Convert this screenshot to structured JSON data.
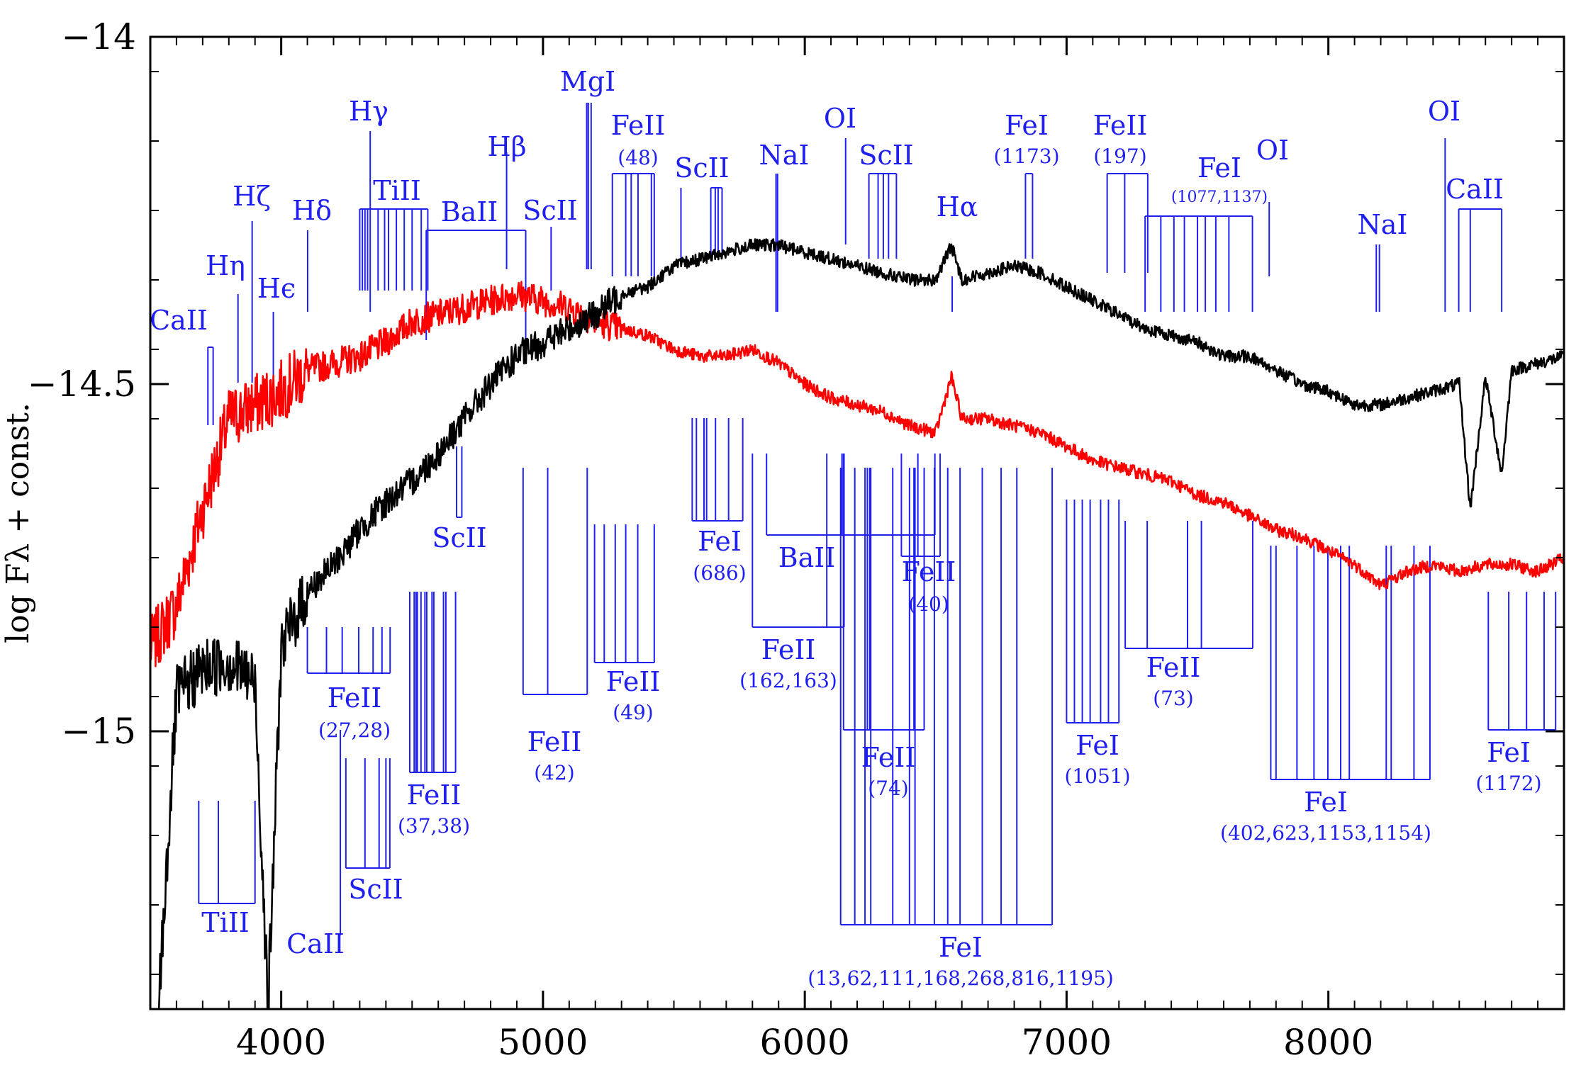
{
  "chart_data": {
    "type": "line",
    "title": "",
    "xlabel": "",
    "ylabel": "log Fλ + const.",
    "xlim": [
      3500,
      8900
    ],
    "ylim": [
      -15.4,
      -14.0
    ],
    "x_ticks": [
      4000,
      5000,
      6000,
      7000,
      8000
    ],
    "y_ticks": [
      -14,
      -14.5,
      -15
    ],
    "x_tick_labels": [
      "4000",
      "5000",
      "6000",
      "7000",
      "8000"
    ],
    "y_tick_labels": [
      "−14",
      "−14.5",
      "−15"
    ],
    "grid": false,
    "legend": "none",
    "colors": {
      "series1": "#ff0000",
      "series2": "#000000",
      "annotations": "#1f1ff0",
      "axes": "#000000"
    },
    "series": [
      {
        "color": "#ff0000",
        "x": [
          3500,
          3600,
          3700,
          3800,
          3900,
          4000,
          4100,
          4200,
          4300,
          4400,
          4500,
          4600,
          4700,
          4800,
          4900,
          5000,
          5100,
          5200,
          5300,
          5400,
          5500,
          5600,
          5700,
          5800,
          5900,
          6000,
          6100,
          6200,
          6300,
          6400,
          6500,
          6560,
          6600,
          6700,
          6800,
          6900,
          7000,
          7100,
          7200,
          7300,
          7400,
          7500,
          7600,
          7700,
          7800,
          7900,
          8000,
          8100,
          8200,
          8300,
          8400,
          8500,
          8600,
          8700,
          8800,
          8900
        ],
        "values": [
          -14.88,
          -14.82,
          -14.68,
          -14.55,
          -14.53,
          -14.51,
          -14.48,
          -14.47,
          -14.46,
          -14.44,
          -14.41,
          -14.4,
          -14.39,
          -14.38,
          -14.37,
          -14.38,
          -14.39,
          -14.41,
          -14.42,
          -14.43,
          -14.45,
          -14.46,
          -14.46,
          -14.45,
          -14.47,
          -14.5,
          -14.52,
          -14.53,
          -14.54,
          -14.56,
          -14.57,
          -14.49,
          -14.55,
          -14.55,
          -14.56,
          -14.57,
          -14.59,
          -14.61,
          -14.62,
          -14.63,
          -14.64,
          -14.66,
          -14.67,
          -14.69,
          -14.71,
          -14.72,
          -14.74,
          -14.76,
          -14.79,
          -14.77,
          -14.76,
          -14.77,
          -14.76,
          -14.76,
          -14.77,
          -14.75
        ]
      },
      {
        "color": "#000000",
        "x": [
          3500,
          3600,
          3700,
          3800,
          3900,
          3950,
          4000,
          4100,
          4200,
          4300,
          4400,
          4500,
          4600,
          4700,
          4800,
          4900,
          5000,
          5100,
          5200,
          5300,
          5400,
          5500,
          5600,
          5700,
          5800,
          5900,
          6000,
          6100,
          6200,
          6300,
          6400,
          6500,
          6560,
          6600,
          6700,
          6800,
          6900,
          7000,
          7100,
          7200,
          7300,
          7400,
          7500,
          7600,
          7700,
          7800,
          7900,
          8000,
          8100,
          8200,
          8300,
          8400,
          8500,
          8542,
          8600,
          8662,
          8700,
          8800,
          8900
        ],
        "values": [
          -15.6,
          -14.95,
          -14.91,
          -14.9,
          -14.93,
          -15.4,
          -14.88,
          -14.8,
          -14.76,
          -14.71,
          -14.67,
          -14.64,
          -14.6,
          -14.55,
          -14.5,
          -14.46,
          -14.44,
          -14.42,
          -14.4,
          -14.37,
          -14.36,
          -14.33,
          -14.32,
          -14.31,
          -14.3,
          -14.3,
          -14.31,
          -14.32,
          -14.33,
          -14.34,
          -14.35,
          -14.35,
          -14.3,
          -14.35,
          -14.34,
          -14.33,
          -14.34,
          -14.36,
          -14.38,
          -14.4,
          -14.42,
          -14.43,
          -14.44,
          -14.46,
          -14.46,
          -14.48,
          -14.5,
          -14.51,
          -14.53,
          -14.53,
          -14.52,
          -14.51,
          -14.5,
          -14.68,
          -14.49,
          -14.63,
          -14.48,
          -14.47,
          -14.46
        ]
      }
    ],
    "annotations": [
      {
        "label": "CaII",
        "sub": "",
        "lines": [
          3720,
          3740
        ]
      },
      {
        "label": "Hη",
        "sub": "",
        "lines": [
          3835
        ]
      },
      {
        "label": "Hζ",
        "sub": "",
        "lines": [
          3889
        ]
      },
      {
        "label": "Hϵ",
        "sub": "",
        "lines": [
          3970
        ]
      },
      {
        "label": "Hδ",
        "sub": "",
        "lines": [
          4101
        ]
      },
      {
        "label": "Hγ",
        "sub": "",
        "lines": [
          4340
        ]
      },
      {
        "label": "TiII",
        "sub": "",
        "lines": [
          4300,
          4310,
          4320,
          4330,
          4370,
          4395,
          4410,
          4440,
          4470,
          4500,
          4535,
          4560
        ]
      },
      {
        "label": "BaII",
        "sub": "",
        "lines": [
          4554,
          4934
        ]
      },
      {
        "label": "Hβ",
        "sub": "",
        "lines": [
          4861
        ]
      },
      {
        "label": "ScII",
        "sub": "",
        "lines": [
          5031
        ]
      },
      {
        "label": "MgI",
        "sub": "",
        "lines": [
          5167,
          5173,
          5184
        ]
      },
      {
        "label": "FeII",
        "sub": "(48)",
        "lines": [
          5265,
          5316,
          5337,
          5363,
          5414,
          5425
        ]
      },
      {
        "label": "ScII",
        "sub": "",
        "lines": [
          5527
        ]
      },
      {
        "label": "ScII",
        "sub": "",
        "lines": [
          5641,
          5658,
          5669,
          5684
        ]
      },
      {
        "label": "NaI",
        "sub": "",
        "lines": [
          5890,
          5896
        ]
      },
      {
        "label": "OI",
        "sub": "",
        "lines": [
          6156
        ]
      },
      {
        "label": "ScII",
        "sub": "",
        "lines": [
          6245,
          6280,
          6300,
          6320,
          6350
        ]
      },
      {
        "label": "Hα",
        "sub": "",
        "lines": [
          6563
        ]
      },
      {
        "label": "FeI",
        "sub": "(1173)",
        "lines": [
          6843,
          6870
        ]
      },
      {
        "label": "FeII",
        "sub": "(197)",
        "lines": [
          7155,
          7222,
          7310
        ]
      },
      {
        "label": "FeI",
        "sub": "(1077,1137)",
        "lines": [
          7300,
          7360,
          7410,
          7450,
          7500,
          7530,
          7570,
          7620,
          7710
        ]
      },
      {
        "label": "OI",
        "sub": "",
        "lines": [
          7774
        ]
      },
      {
        "label": "NaI",
        "sub": "",
        "lines": [
          8183,
          8195
        ]
      },
      {
        "label": "OI",
        "sub": "",
        "lines": [
          8446
        ]
      },
      {
        "label": "CaII",
        "sub": "",
        "lines": [
          8498,
          8542,
          8662
        ]
      },
      {
        "label": "TiII",
        "sub": "",
        "lines": [
          3685,
          3760,
          3900
        ]
      },
      {
        "label": "CaII",
        "sub": "",
        "lines": [
          4226
        ]
      },
      {
        "label": "FeII",
        "sub": "(27,28)",
        "lines": [
          4100,
          4173,
          4233,
          4296,
          4351,
          4385,
          4416
        ]
      },
      {
        "label": "ScII",
        "sub": "",
        "lines": [
          4247,
          4320,
          4374,
          4400,
          4415
        ]
      },
      {
        "label": "FeII",
        "sub": "(37,38)",
        "lines": [
          4491,
          4508,
          4515,
          4520,
          4534,
          4549,
          4556,
          4576,
          4583,
          4620,
          4629,
          4666
        ]
      },
      {
        "label": "ScII",
        "sub": "",
        "lines": [
          4670,
          4690
        ]
      },
      {
        "label": "FeII",
        "sub": "(42)",
        "lines": [
          4924,
          5018,
          5169
        ]
      },
      {
        "label": "FeII",
        "sub": "(49)",
        "lines": [
          5197,
          5234,
          5276,
          5316,
          5362,
          5425
        ]
      },
      {
        "label": "FeI",
        "sub": "(686)",
        "lines": [
          5570,
          5586,
          5615,
          5625,
          5659,
          5709,
          5763
        ]
      },
      {
        "label": "BaII",
        "sub": "",
        "lines": [
          5854,
          6142,
          6497
        ]
      },
      {
        "label": "FeII",
        "sub": "(162,163)",
        "lines": [
          5800,
          6084,
          6148,
          6150
        ]
      },
      {
        "label": "FeII",
        "sub": "(40)",
        "lines": [
          6369,
          6432,
          6517
        ]
      },
      {
        "label": "FeII",
        "sub": "(74)",
        "lines": [
          6148,
          6239,
          6248,
          6417,
          6456
        ]
      },
      {
        "label": "FeI",
        "sub": "(13,62,111,168,268,816,1195)",
        "lines": [
          6137,
          6191,
          6230,
          6252,
          6336,
          6400,
          6421,
          6495,
          6546,
          6593,
          6678,
          6750,
          6810,
          6945
        ]
      },
      {
        "label": "FeI",
        "sub": "(1051)",
        "lines": [
          7000,
          7030,
          7060,
          7090,
          7130,
          7160,
          7200
        ]
      },
      {
        "label": "FeII",
        "sub": "(73)",
        "lines": [
          7224,
          7308,
          7462,
          7515,
          7711
        ]
      },
      {
        "label": "FeI",
        "sub": "(402,623,1153,1154)",
        "lines": [
          7780,
          7800,
          7880,
          7945,
          7998,
          8047,
          8080,
          8221,
          8240,
          8327,
          8388
        ]
      },
      {
        "label": "FeI",
        "sub": "(1172)",
        "lines": [
          8611,
          8689,
          8757,
          8824,
          8868
        ]
      }
    ]
  }
}
